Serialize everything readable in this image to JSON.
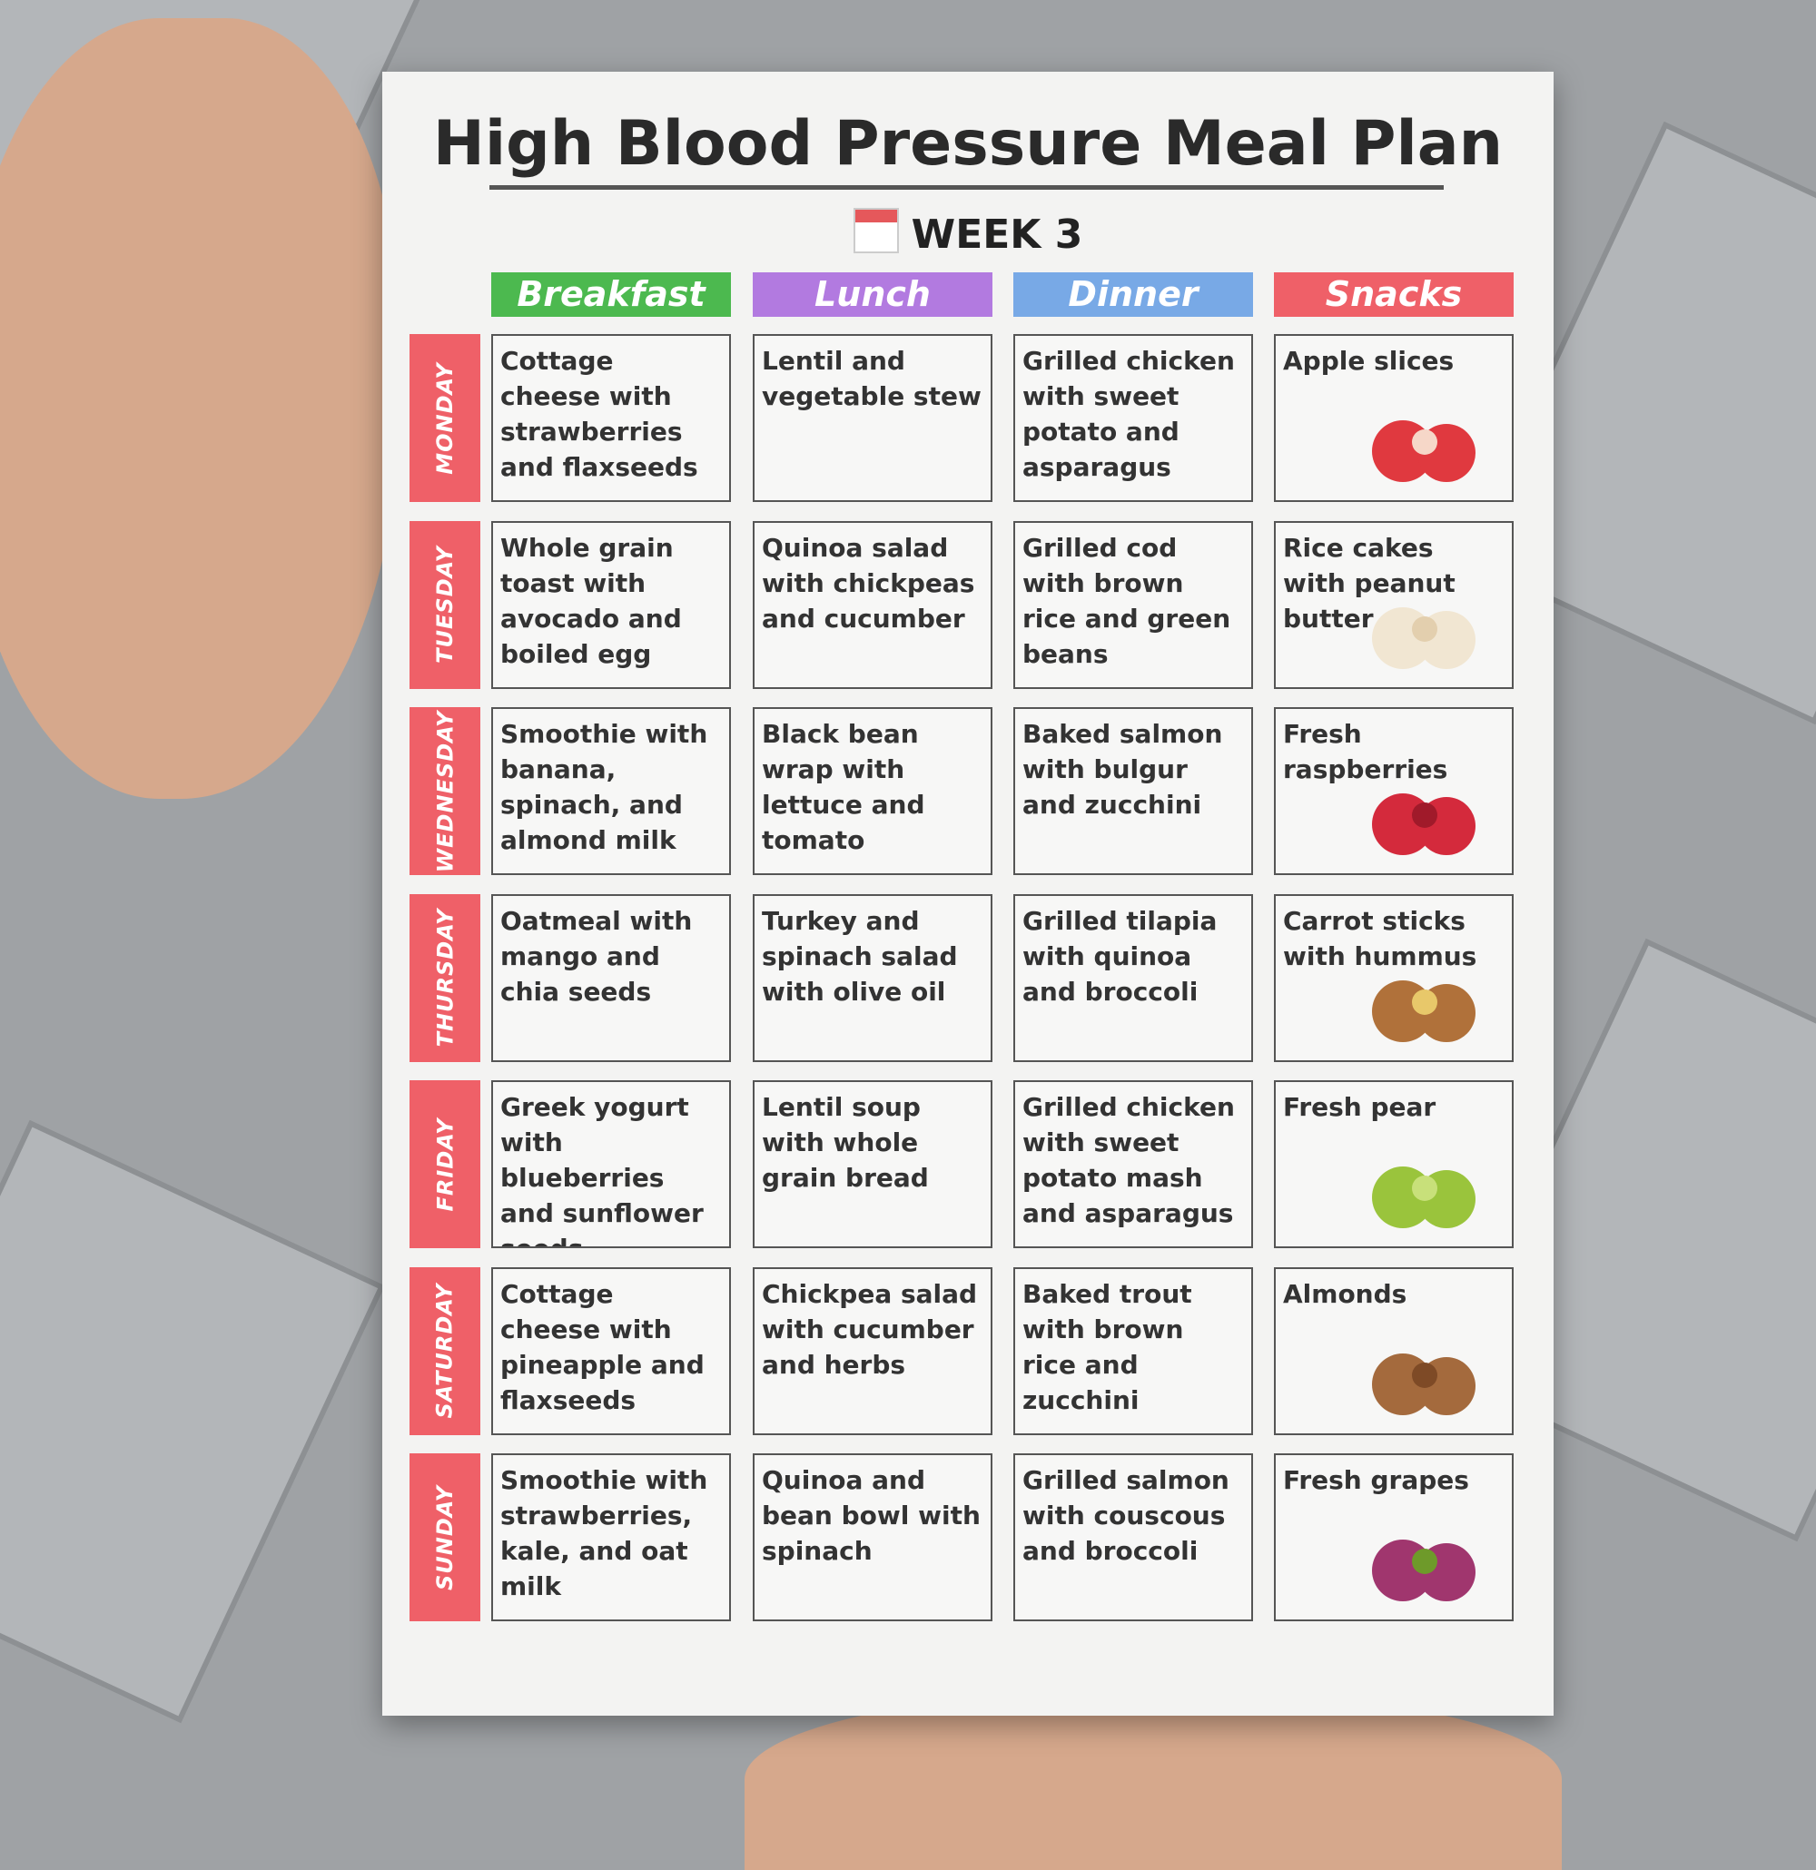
{
  "title": "High Blood Pressure Meal Plan",
  "week": "WEEK 3",
  "columns": [
    "Breakfast",
    "Lunch",
    "Dinner",
    "Snacks"
  ],
  "rows": [
    {
      "day": "MONDAY",
      "meals": [
        "Cottage cheese with strawberries and flaxseeds",
        "Lentil and vegetable stew",
        "Grilled chicken with sweet potato and asparagus",
        "Apple slices"
      ]
    },
    {
      "day": "TUESDAY",
      "meals": [
        "Whole grain toast with avocado and boiled egg",
        "Quinoa salad with chickpeas and cucumber",
        "Grilled cod with brown rice and green beans",
        "Rice cakes with peanut butter"
      ]
    },
    {
      "day": "WEDNESDAY",
      "meals": [
        "Smoothie with banana, spinach, and almond milk",
        "Black bean wrap with lettuce and tomato",
        "Baked salmon with bulgur and zucchini",
        "Fresh raspberries"
      ]
    },
    {
      "day": "THURSDAY",
      "meals": [
        "Oatmeal with mango and chia seeds",
        "Turkey and spinach salad with olive oil",
        "Grilled tilapia with quinoa and broccoli",
        "Carrot sticks with hummus"
      ]
    },
    {
      "day": "FRIDAY",
      "meals": [
        "Greek yogurt with blueberries and sunflower seeds",
        "Lentil soup with whole grain bread",
        "Grilled chicken with sweet potato mash and asparagus",
        "Fresh pear"
      ]
    },
    {
      "day": "SATURDAY",
      "meals": [
        "Cottage cheese with pineapple and flaxseeds",
        "Chickpea salad with cucumber and herbs",
        "Baked trout with brown rice and zucchini",
        "Almonds"
      ]
    },
    {
      "day": "SUNDAY",
      "meals": [
        "Smoothie with strawberries, kale, and oat milk",
        "Quinoa and bean bowl with spinach",
        "Grilled salmon with couscous and broccoli",
        "Fresh grapes"
      ]
    }
  ]
}
